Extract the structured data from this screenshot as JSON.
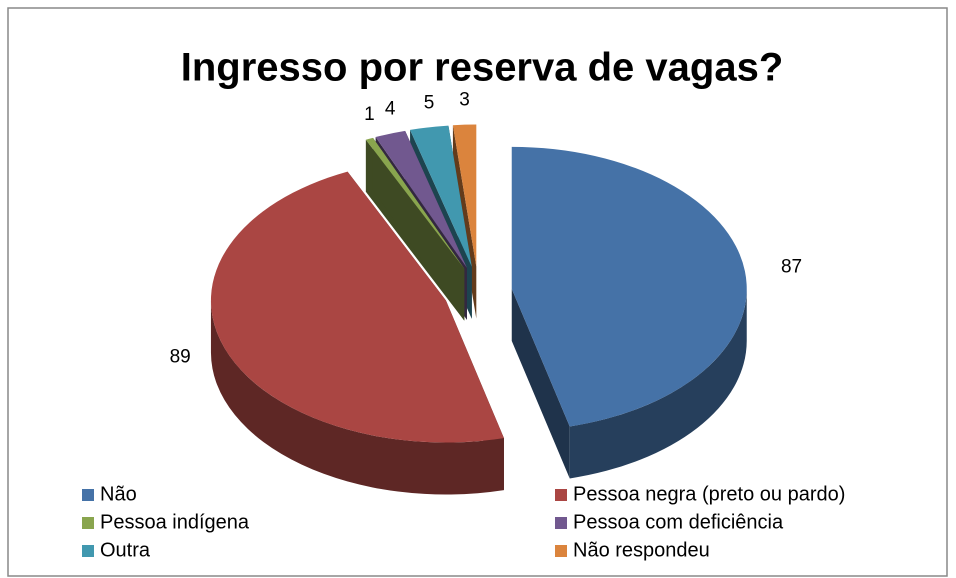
{
  "chart_data": {
    "type": "pie3d",
    "title": "Ingresso por reserva de vagas?",
    "categories": [
      "Não",
      "Pessoa negra (preto ou pardo)",
      "Pessoa indígena",
      "Pessoa com deficiência",
      "Outra",
      "Não respondeu"
    ],
    "values": [
      87,
      89,
      1,
      4,
      5,
      3
    ],
    "colors": [
      "#4572a7",
      "#aa4643",
      "#89a54e",
      "#71588f",
      "#4198af",
      "#db843d"
    ],
    "legend": "bottom"
  }
}
